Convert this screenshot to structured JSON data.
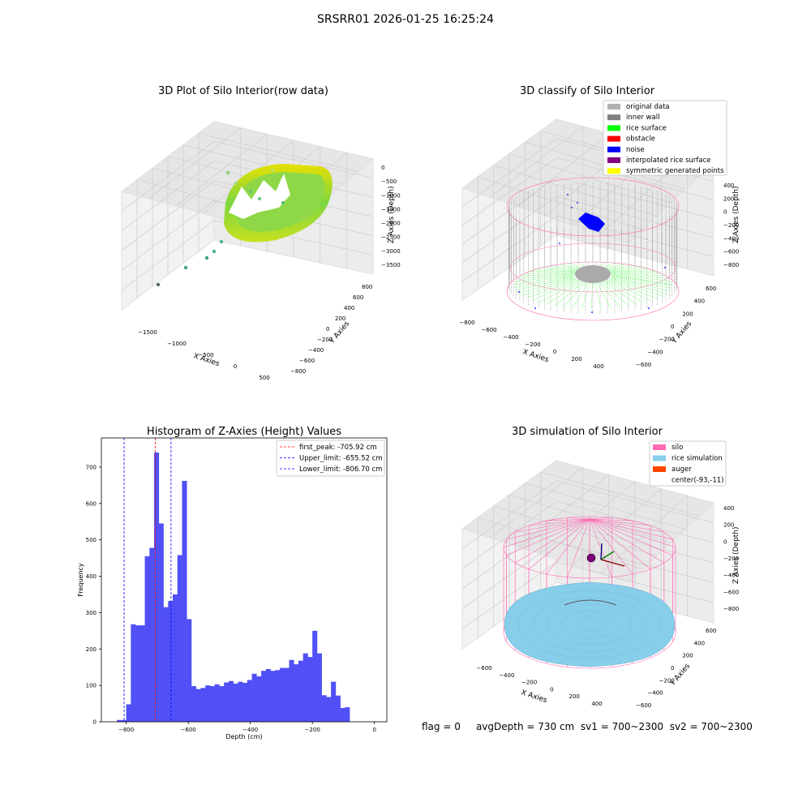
{
  "suptitle": "SRSRR01 2026-01-25 16:25:24",
  "footer": {
    "flag": "flag = 0",
    "avg_depth": "avgDepth = 730 cm",
    "sv1": "sv1 = 700~2300",
    "sv2": "sv2 = 700~2300"
  },
  "colors": {
    "hist_bar": "#5050f6",
    "first_peak_line": "#ff0000",
    "limit_line": "#0000ff",
    "silo": "#ff69b4",
    "rice_sim": "#87ceeb",
    "auger": "#ff4500",
    "inner_wall": "#808080",
    "rice_surface": "#00ff00",
    "noise": "#0000ff",
    "original": "#b0b0b0",
    "obstacle": "#ff0000",
    "interp": "#800080",
    "symmetric": "#ffff00"
  },
  "chart_data": [
    {
      "type": "scatter",
      "title": "3D Plot of Silo Interior(row data)",
      "xlabel": "X Axies",
      "ylabel": "Y Axies",
      "zlabel": "Z Axies (Depth)",
      "xticks": [
        "−1500",
        "−1000",
        "−500",
        "0",
        "500"
      ],
      "yticks": [
        "800",
        "600",
        "400",
        "200",
        "0",
        "−200",
        "−400",
        "−600",
        "−800"
      ],
      "zticks": [
        "0",
        "−500",
        "−1000",
        "−1500",
        "−2000",
        "−2500",
        "−3000",
        "−3500"
      ]
    },
    {
      "type": "scatter",
      "title": "3D classify of Silo Interior",
      "xlabel": "X Axies",
      "ylabel": "Y Axies",
      "zlabel": "Z Axies (Depth)",
      "xticks": [
        "−800",
        "−600",
        "−400",
        "−200",
        "0",
        "200",
        "400"
      ],
      "yticks": [
        "600",
        "400",
        "200",
        "0",
        "−200",
        "−400",
        "−600"
      ],
      "zticks": [
        "400",
        "200",
        "0",
        "−200",
        "−400",
        "−600",
        "−800"
      ],
      "legend": [
        "original data",
        "inner wall",
        "rice surface",
        "obstacle",
        "noise",
        "interpolated rice surface",
        "symmetric generated points"
      ]
    },
    {
      "type": "bar",
      "title": "Histogram of Z-Axies (Height) Values",
      "xlabel": "Depth (cm)",
      "ylabel": "Frequency",
      "xlim": [
        -880,
        40
      ],
      "ylim": [
        0,
        780
      ],
      "xticks": [
        -800,
        -600,
        -400,
        -200,
        0
      ],
      "xtick_labels": [
        "−800",
        "−600",
        "−400",
        "−200",
        "0"
      ],
      "yticks": [
        0,
        100,
        200,
        300,
        400,
        500,
        600,
        700
      ],
      "bin_start": -830,
      "bin_width": 15,
      "values": [
        5,
        5,
        48,
        268,
        265,
        265,
        455,
        478,
        740,
        545,
        315,
        332,
        350,
        458,
        662,
        282,
        98,
        90,
        93,
        100,
        98,
        103,
        98,
        108,
        112,
        105,
        110,
        107,
        115,
        132,
        125,
        140,
        145,
        140,
        142,
        148,
        148,
        170,
        158,
        168,
        188,
        178,
        250,
        188,
        73,
        68,
        110,
        72,
        38,
        40
      ],
      "vlines": [
        {
          "x": -705.92,
          "label": "first_peak: -705.92 cm",
          "color": "#ff0000"
        },
        {
          "x": -655.52,
          "label": "Upper_limit: -655.52 cm",
          "color": "#0000ff"
        },
        {
          "x": -806.7,
          "label": "Lower_limit: -806.70 cm",
          "color": "#0000ff"
        }
      ]
    },
    {
      "type": "scatter",
      "title": "3D simulation of Silo Interior",
      "xlabel": "X Axies",
      "ylabel": "Y Axies",
      "zlabel": "Z Axies (Depth)",
      "xticks": [
        "−600",
        "−400",
        "−200",
        "0",
        "200",
        "400"
      ],
      "yticks": [
        "600",
        "400",
        "200",
        "0",
        "−200",
        "−400",
        "−600"
      ],
      "zticks": [
        "400",
        "200",
        "0",
        "−200",
        "−400",
        "−600",
        "−800"
      ],
      "legend": [
        "silo",
        "rice simulation",
        "auger",
        "center(-93,-11)"
      ]
    }
  ]
}
